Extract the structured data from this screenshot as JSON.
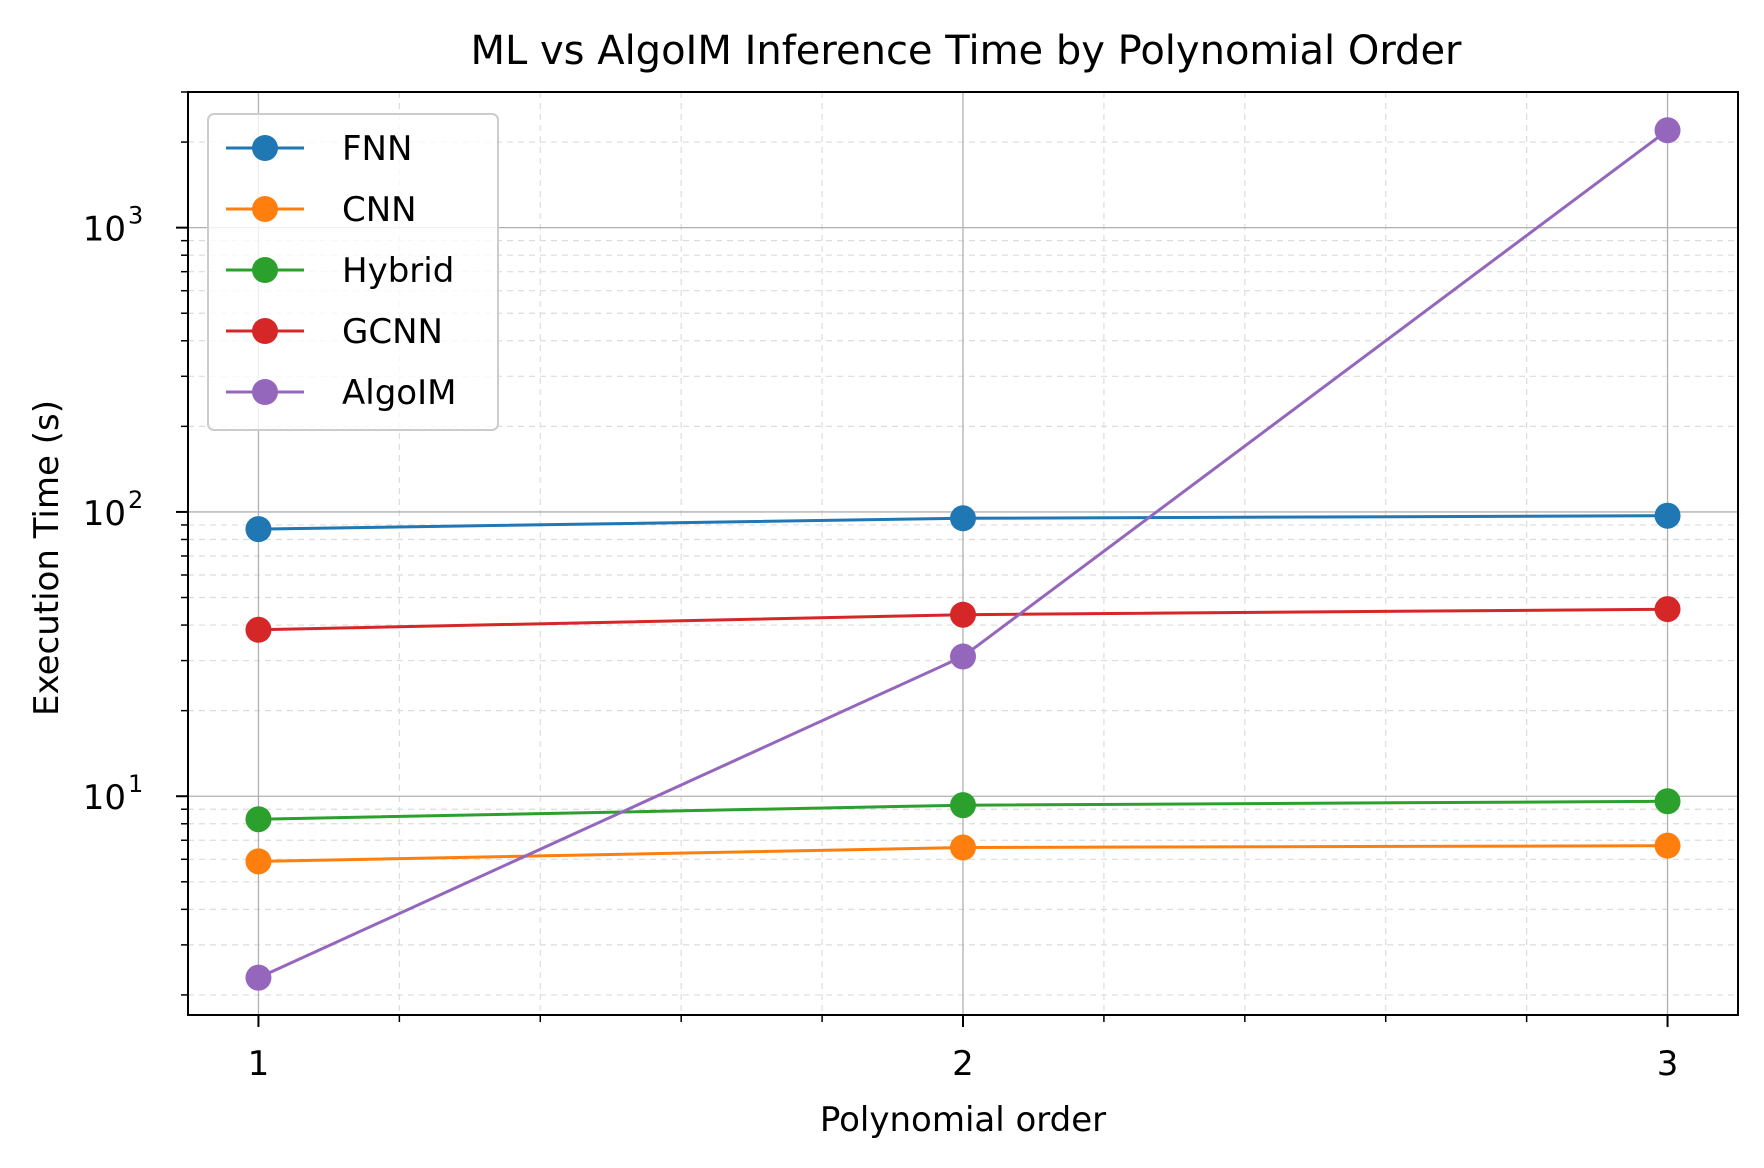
{
  "chart_data": {
    "type": "line",
    "title": "ML vs AlgoIM Inference Time by Polynomial Order",
    "xlabel": "Polynomial order",
    "ylabel": "Execution Time (s)",
    "x": [
      1,
      2,
      3
    ],
    "x_ticks": [
      1,
      2,
      3
    ],
    "xlim": [
      0.9,
      3.1
    ],
    "yscale": "log",
    "ylim": [
      1.7,
      3000
    ],
    "y_ticks": [
      {
        "value": 10,
        "base": "10",
        "exp": "1"
      },
      {
        "value": 100,
        "base": "10",
        "exp": "2"
      },
      {
        "value": 1000,
        "base": "10",
        "exp": "3"
      }
    ],
    "grid": true,
    "legend_position": "upper-left",
    "series": [
      {
        "name": "FNN",
        "color": "#1f77b4",
        "values": [
          87,
          95,
          97
        ]
      },
      {
        "name": "CNN",
        "color": "#ff7f0e",
        "values": [
          5.9,
          6.6,
          6.7
        ]
      },
      {
        "name": "Hybrid",
        "color": "#2ca02c",
        "values": [
          8.3,
          9.3,
          9.6
        ]
      },
      {
        "name": "GCNN",
        "color": "#d62728",
        "values": [
          38.5,
          43.5,
          45.5
        ]
      },
      {
        "name": "AlgoIM",
        "color": "#9467bd",
        "values": [
          2.3,
          31,
          2200
        ]
      }
    ]
  }
}
